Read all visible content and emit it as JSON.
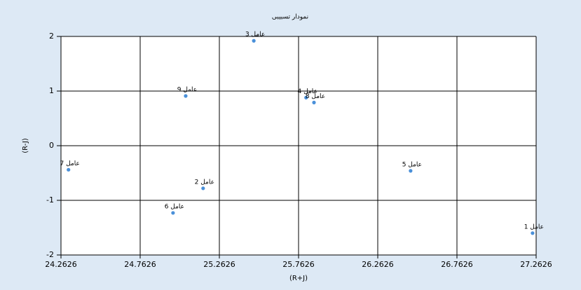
{
  "chart_data": {
    "type": "scatter",
    "title": "نمودار تسبیبی",
    "x_label": "(R+J)",
    "y_label": "(R-J)",
    "series": [
      {
        "color": "#4a90d9",
        "point_labels": [
          "عامل 1",
          "عامل 2",
          "عامل 3",
          "عامل 4",
          "عامل 5",
          "عامل 6",
          "عامل 7",
          "عامل 8",
          "عامل 9"
        ],
        "x": [
          27.24,
          25.16,
          25.48,
          25.81,
          26.47,
          24.97,
          24.31,
          25.86,
          25.05
        ],
        "values": [
          -1.6,
          -0.78,
          1.92,
          0.88,
          -0.46,
          -1.23,
          -0.44,
          0.79,
          0.91
        ]
      }
    ],
    "xlim": [
      24.2626,
      27.2626
    ],
    "xticks": [
      24.2626,
      24.7626,
      25.2626,
      25.7626,
      26.2626,
      26.7626,
      27.2626
    ],
    "ylim": [
      -2,
      2
    ],
    "yticks": [
      -2,
      -1,
      0,
      1,
      2
    ],
    "grid": true
  }
}
